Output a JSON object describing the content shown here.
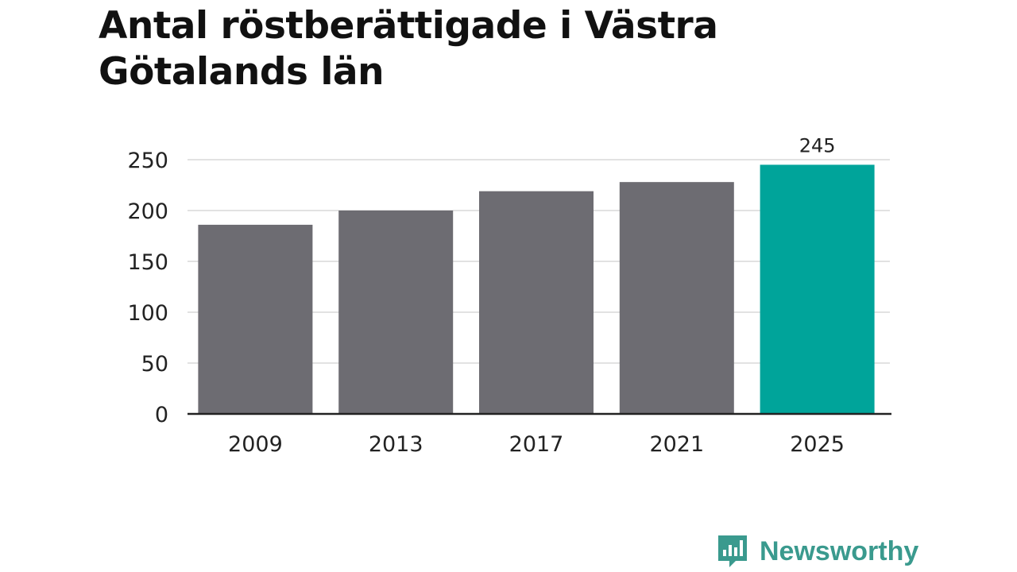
{
  "chart_data": {
    "type": "bar",
    "title": "Antal röstberättigade i Västra Götalands län",
    "categories": [
      "2009",
      "2013",
      "2017",
      "2021",
      "2025"
    ],
    "values": [
      186,
      200,
      219,
      228,
      245
    ],
    "ylim": [
      0,
      250
    ],
    "yticks": [
      0,
      50,
      100,
      150,
      200,
      250
    ],
    "grid": true,
    "highlight_index": 4,
    "data_labels": [
      {
        "index": 4,
        "text": "245"
      }
    ],
    "colors": {
      "default_bar": "#6d6c72",
      "highlight_bar": "#00a49a",
      "grid": "#d9d9d9",
      "axis": "#222222"
    }
  },
  "brand": {
    "name": "Newsworthy",
    "icon": "bar-chart-speech-icon",
    "color": "#3a9a8e"
  }
}
